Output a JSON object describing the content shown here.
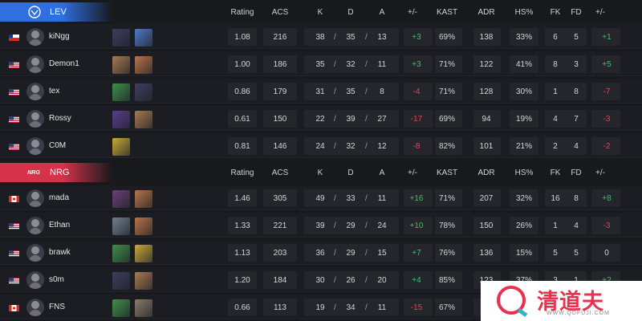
{
  "headers": {
    "rating": "Rating",
    "acs": "ACS",
    "k": "K",
    "d": "D",
    "a": "A",
    "kd_diff": "+/-",
    "kast": "KAST",
    "adr": "ADR",
    "hs": "HS%",
    "fk": "FK",
    "fd": "FD",
    "fkfd_diff": "+/-"
  },
  "slash": "/",
  "teams": [
    {
      "name": "LEV",
      "logo_text": "",
      "banner_color": "#2f6fe0",
      "players": [
        {
          "flag": "chile",
          "name": "kiNgg",
          "agents": [
            "omen-icon",
            "jett-icon"
          ],
          "rating": "1.08",
          "acs": "216",
          "k": "38",
          "d": "35",
          "a": "13",
          "kd_diff": "+3",
          "kast": "69%",
          "adr": "138",
          "hs": "33%",
          "fk": "6",
          "fd": "5",
          "fk_diff": "+1"
        },
        {
          "flag": "usa",
          "name": "Demon1",
          "agents": [
            "sova-icon",
            "raze-icon"
          ],
          "rating": "1.00",
          "acs": "186",
          "k": "35",
          "d": "32",
          "a": "11",
          "kd_diff": "+3",
          "kast": "71%",
          "adr": "122",
          "hs": "41%",
          "fk": "8",
          "fd": "3",
          "fk_diff": "+5"
        },
        {
          "flag": "usa",
          "name": "tex",
          "agents": [
            "viper-icon",
            "omen-icon"
          ],
          "rating": "0.86",
          "acs": "179",
          "k": "31",
          "d": "35",
          "a": "8",
          "kd_diff": "-4",
          "kast": "71%",
          "adr": "128",
          "hs": "30%",
          "fk": "1",
          "fd": "8",
          "fk_diff": "-7"
        },
        {
          "flag": "usa",
          "name": "Rossy",
          "agents": [
            "astra-icon",
            "sova-icon"
          ],
          "rating": "0.61",
          "acs": "150",
          "k": "22",
          "d": "39",
          "a": "27",
          "kd_diff": "-17",
          "kast": "69%",
          "adr": "94",
          "hs": "19%",
          "fk": "4",
          "fd": "7",
          "fk_diff": "-3"
        },
        {
          "flag": "usa",
          "name": "C0M",
          "agents": [
            "killjoy-icon"
          ],
          "rating": "0.81",
          "acs": "146",
          "k": "24",
          "d": "32",
          "a": "12",
          "kd_diff": "-8",
          "kast": "82%",
          "adr": "101",
          "hs": "21%",
          "fk": "2",
          "fd": "4",
          "fk_diff": "-2"
        }
      ]
    },
    {
      "name": "NRG",
      "logo_text": "NRG",
      "banner_color": "#d6334a",
      "players": [
        {
          "flag": "canada",
          "name": "mada",
          "agents": [
            "reyna-icon",
            "raze-icon"
          ],
          "rating": "1.46",
          "acs": "305",
          "k": "49",
          "d": "33",
          "a": "11",
          "kd_diff": "+16",
          "kast": "71%",
          "adr": "207",
          "hs": "32%",
          "fk": "16",
          "fd": "8",
          "fk_diff": "+8"
        },
        {
          "flag": "usa",
          "name": "Ethan",
          "agents": [
            "kayo-icon",
            "raze-icon"
          ],
          "rating": "1.33",
          "acs": "221",
          "k": "39",
          "d": "29",
          "a": "24",
          "kd_diff": "+10",
          "kast": "78%",
          "adr": "150",
          "hs": "26%",
          "fk": "1",
          "fd": "4",
          "fk_diff": "-3"
        },
        {
          "flag": "usa",
          "name": "brawk",
          "agents": [
            "viper-icon",
            "killjoy-icon"
          ],
          "rating": "1.13",
          "acs": "203",
          "k": "36",
          "d": "29",
          "a": "15",
          "kd_diff": "+7",
          "kast": "76%",
          "adr": "136",
          "hs": "15%",
          "fk": "5",
          "fd": "5",
          "fk_diff": "0"
        },
        {
          "flag": "usa",
          "name": "s0m",
          "agents": [
            "omen-icon",
            "sova-icon"
          ],
          "rating": "1.20",
          "acs": "184",
          "k": "30",
          "d": "26",
          "a": "20",
          "kd_diff": "+4",
          "kast": "85%",
          "adr": "123",
          "hs": "37%",
          "fk": "3",
          "fd": "1",
          "fk_diff": "+2"
        },
        {
          "flag": "canada",
          "name": "FNS",
          "agents": [
            "viper-icon",
            "chamber-icon"
          ],
          "rating": "0.66",
          "acs": "113",
          "k": "19",
          "d": "34",
          "a": "11",
          "kd_diff": "-15",
          "kast": "67%",
          "adr": "",
          "hs": "",
          "fk": "",
          "fd": "",
          "fk_diff": ""
        }
      ]
    }
  ],
  "watermark": {
    "text": "清道夫",
    "url": "WWW.QDFUJI.COM",
    "accent": "#e8314f"
  }
}
